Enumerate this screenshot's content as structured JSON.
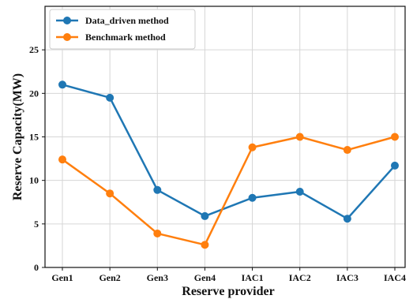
{
  "chart_data": {
    "type": "line",
    "xlabel": "Reserve provider",
    "ylabel": "Reserve Capacity(MW)",
    "categories": [
      "Gen1",
      "Gen2",
      "Gen3",
      "Gen4",
      "IAC1",
      "IAC2",
      "IAC3",
      "IAC4"
    ],
    "ylim": [
      0,
      30
    ],
    "yticks": [
      0,
      5,
      10,
      15,
      20,
      25
    ],
    "grid": true,
    "legend_position": "top-left",
    "series": [
      {
        "name": "Data_driven method",
        "color": "#1f77b4",
        "values": [
          21.0,
          19.5,
          8.9,
          5.9,
          8.0,
          8.7,
          5.6,
          11.7
        ]
      },
      {
        "name": "Benchmark method",
        "color": "#ff7f0e",
        "values": [
          12.4,
          8.5,
          3.9,
          2.6,
          13.8,
          15.0,
          13.5,
          15.0
        ]
      }
    ]
  }
}
